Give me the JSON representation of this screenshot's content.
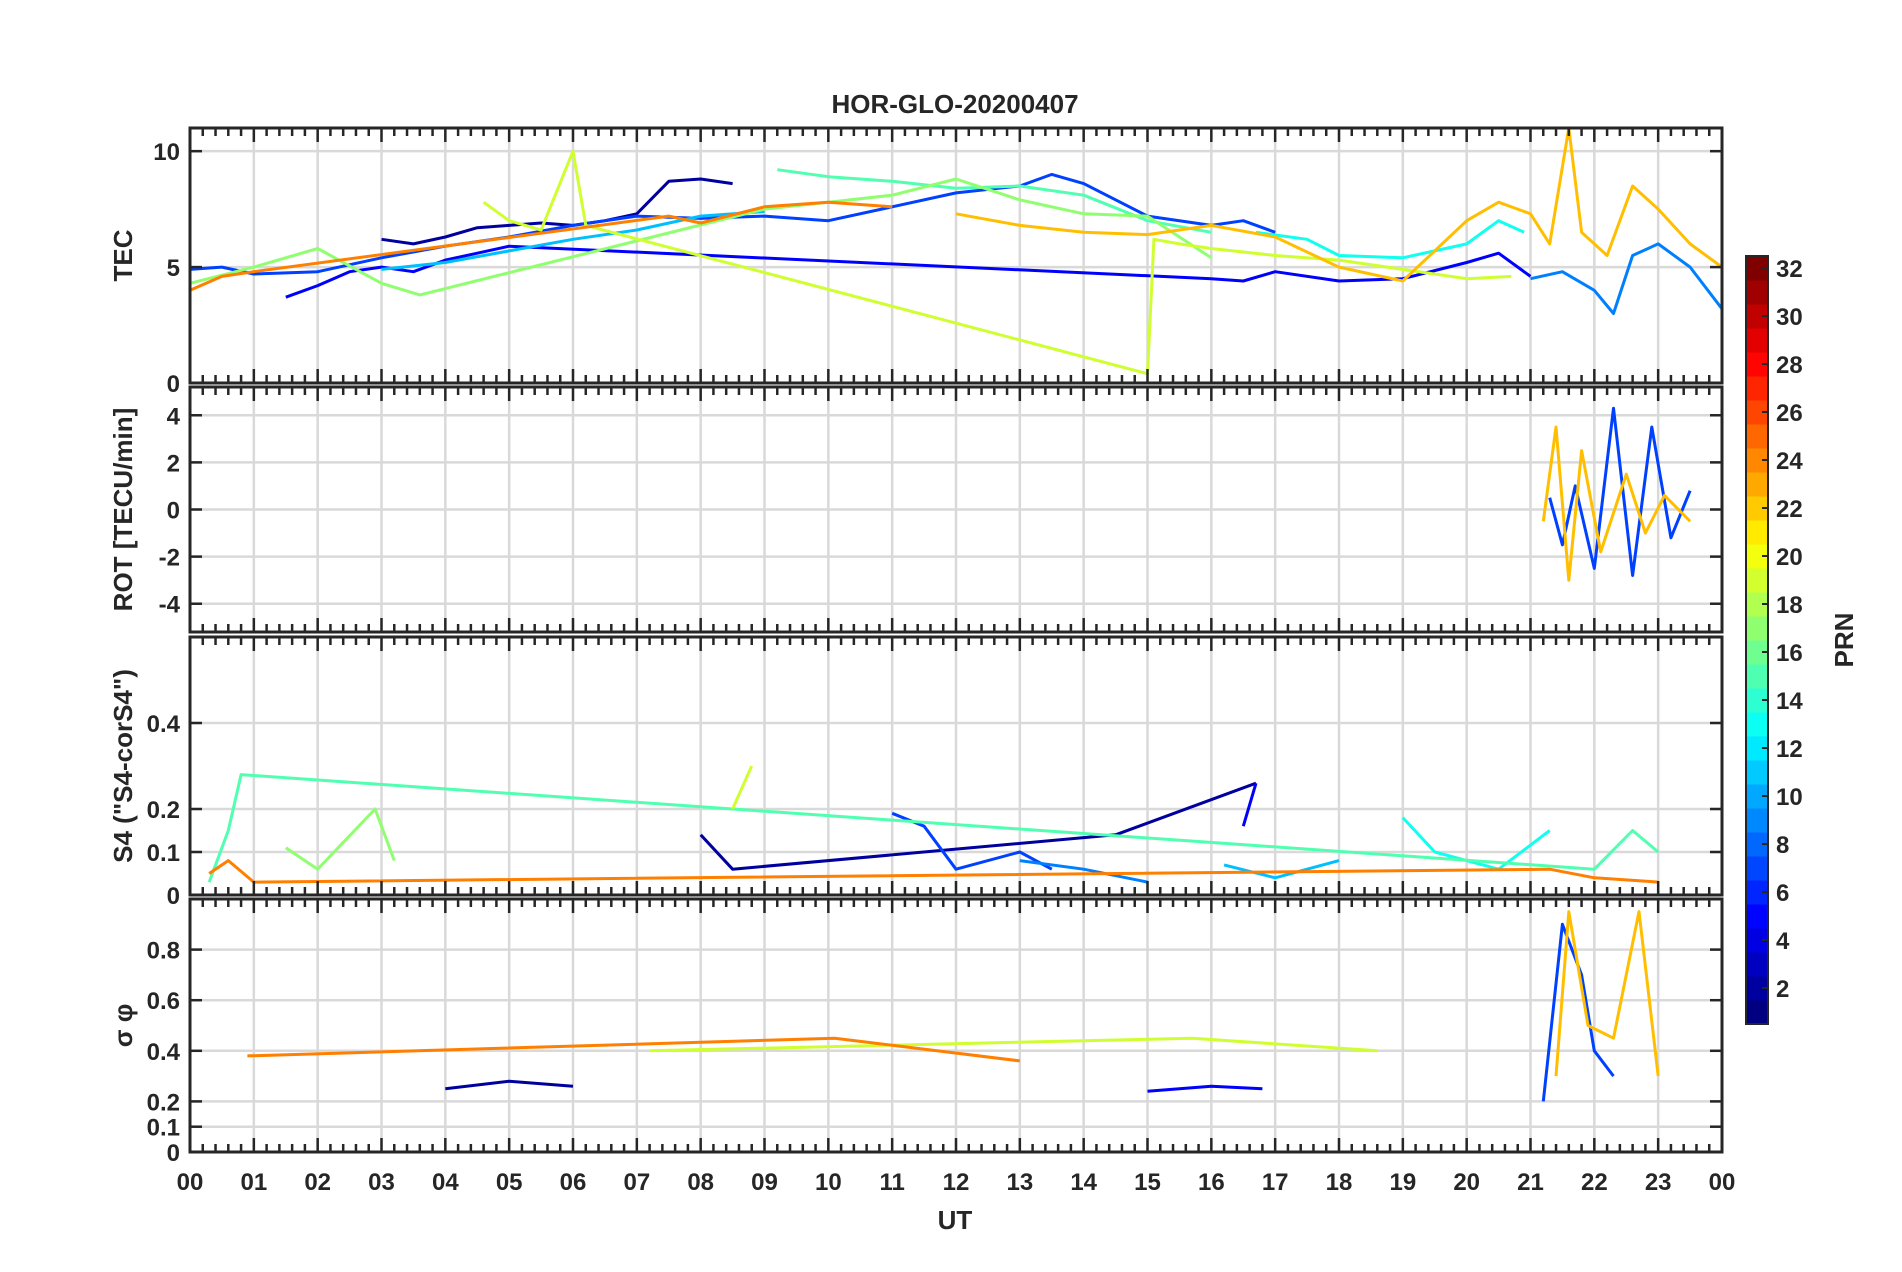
{
  "title": "HOR-GLO-20200407",
  "xlabel": "UT",
  "x_ticks": [
    "00",
    "01",
    "02",
    "03",
    "04",
    "05",
    "06",
    "07",
    "08",
    "09",
    "10",
    "11",
    "12",
    "13",
    "14",
    "15",
    "16",
    "17",
    "18",
    "19",
    "20",
    "21",
    "22",
    "23",
    "00"
  ],
  "colorbar": {
    "label": "PRN",
    "range": [
      1,
      32
    ],
    "ticks": [
      "2",
      "4",
      "6",
      "8",
      "10",
      "12",
      "14",
      "16",
      "18",
      "20",
      "22",
      "24",
      "26",
      "28",
      "30",
      "32"
    ],
    "colormap": "jet"
  },
  "panels": [
    {
      "id": "tec",
      "ylabel": "TEC",
      "ylim": [
        0,
        11
      ],
      "yticks": [
        0,
        5,
        10
      ],
      "ytick_labels": [
        "0",
        "5",
        "10"
      ]
    },
    {
      "id": "rot",
      "ylabel": "ROT [TECU/min]",
      "ylim": [
        -5.2,
        5.2
      ],
      "yticks": [
        -4,
        -2,
        0,
        2,
        4
      ],
      "ytick_labels": [
        "-4",
        "-2",
        "0",
        "2",
        "4"
      ]
    },
    {
      "id": "s4",
      "ylabel": "S4 (\"S4-corS4\")",
      "ylim": [
        0,
        0.6
      ],
      "yticks": [
        0,
        0.1,
        0.2,
        0.4
      ],
      "ytick_labels": [
        "0",
        "0.1",
        "0.2",
        "0.4"
      ]
    },
    {
      "id": "sigma",
      "ylabel": "σ φ",
      "ylim": [
        0,
        1.0
      ],
      "yticks": [
        0,
        0.1,
        0.2,
        0.4,
        0.6,
        0.8
      ],
      "ytick_labels": [
        "0",
        "0.1",
        "0.2",
        "0.4",
        "0.6",
        "0.8"
      ]
    }
  ],
  "chart_data": {
    "type": "line",
    "title": "HOR-GLO-20200407",
    "xlabel": "UT",
    "xlim": [
      0,
      24
    ],
    "series": [
      {
        "prn": 2,
        "color": "#00009f",
        "tec": [
          [
            3.0,
            6.2
          ],
          [
            3.5,
            6.0
          ],
          [
            4.0,
            6.3
          ],
          [
            4.5,
            6.7
          ],
          [
            5.0,
            6.8
          ],
          [
            5.5,
            6.9
          ],
          [
            6.0,
            6.8
          ],
          [
            6.5,
            7.0
          ],
          [
            7.0,
            7.3
          ],
          [
            7.5,
            8.7
          ],
          [
            8.0,
            8.8
          ],
          [
            8.5,
            8.6
          ]
        ],
        "sigma": [
          [
            4.0,
            0.25
          ],
          [
            5.0,
            0.28
          ],
          [
            6.0,
            0.26
          ]
        ],
        "s4": [
          [
            8.0,
            0.14
          ],
          [
            8.5,
            0.06
          ],
          [
            14.5,
            0.14
          ],
          [
            16.7,
            0.26
          ]
        ]
      },
      {
        "prn": 5,
        "color": "#0000ff",
        "tec": [
          [
            1.5,
            3.7
          ],
          [
            2.0,
            4.2
          ],
          [
            2.5,
            4.8
          ],
          [
            3.0,
            5.0
          ],
          [
            3.5,
            4.8
          ],
          [
            4.0,
            5.3
          ],
          [
            4.5,
            5.6
          ],
          [
            5.0,
            5.9
          ],
          [
            16.0,
            4.5
          ],
          [
            16.5,
            4.4
          ],
          [
            17.0,
            4.8
          ],
          [
            18.0,
            4.4
          ],
          [
            19.0,
            4.5
          ],
          [
            20.0,
            5.2
          ],
          [
            20.5,
            5.6
          ],
          [
            21.0,
            4.6
          ]
        ],
        "s4": [
          [
            16.5,
            0.16
          ],
          [
            16.7,
            0.26
          ]
        ],
        "sigma": [
          [
            15.0,
            0.24
          ],
          [
            16.0,
            0.26
          ],
          [
            16.8,
            0.25
          ]
        ]
      },
      {
        "prn": 7,
        "color": "#0040ff",
        "tec": [
          [
            0.0,
            4.9
          ],
          [
            0.5,
            5.0
          ],
          [
            1.0,
            4.7
          ],
          [
            2.0,
            4.8
          ],
          [
            3.0,
            5.4
          ],
          [
            4.0,
            5.9
          ],
          [
            5.0,
            6.3
          ],
          [
            6.0,
            6.8
          ],
          [
            7.0,
            7.2
          ],
          [
            8.0,
            7.1
          ],
          [
            9.0,
            7.2
          ],
          [
            10.0,
            7.0
          ],
          [
            11.0,
            7.6
          ],
          [
            12.0,
            8.2
          ],
          [
            13.0,
            8.5
          ],
          [
            13.5,
            9.0
          ],
          [
            14.0,
            8.6
          ],
          [
            15.0,
            7.2
          ],
          [
            16.0,
            6.8
          ],
          [
            16.5,
            7.0
          ],
          [
            17.0,
            6.5
          ]
        ],
        "rot": [
          [
            21.3,
            0.5
          ],
          [
            21.5,
            -1.5
          ],
          [
            21.7,
            1.0
          ],
          [
            22.0,
            -2.5
          ],
          [
            22.3,
            4.3
          ],
          [
            22.6,
            -2.8
          ],
          [
            22.9,
            3.5
          ],
          [
            23.2,
            -1.2
          ],
          [
            23.5,
            0.8
          ]
        ],
        "s4": [
          [
            11.0,
            0.19
          ],
          [
            11.5,
            0.16
          ],
          [
            12.0,
            0.06
          ],
          [
            13.0,
            0.1
          ],
          [
            13.5,
            0.06
          ]
        ],
        "sigma": [
          [
            21.2,
            0.2
          ],
          [
            21.5,
            0.9
          ],
          [
            21.8,
            0.7
          ],
          [
            22.0,
            0.4
          ],
          [
            22.3,
            0.3
          ]
        ]
      },
      {
        "prn": 9,
        "color": "#0080ff",
        "tec": [
          [
            21.0,
            4.5
          ],
          [
            21.5,
            4.8
          ],
          [
            22.0,
            4.0
          ],
          [
            22.3,
            3.0
          ],
          [
            22.6,
            5.5
          ],
          [
            23.0,
            6.0
          ],
          [
            23.5,
            5.0
          ],
          [
            24.0,
            3.2
          ]
        ],
        "s4": [
          [
            13.0,
            0.08
          ],
          [
            14.0,
            0.06
          ],
          [
            15.0,
            0.03
          ]
        ]
      },
      {
        "prn": 12,
        "color": "#00bfff",
        "tec": [
          [
            3.0,
            4.9
          ],
          [
            4.0,
            5.2
          ],
          [
            5.0,
            5.7
          ],
          [
            6.0,
            6.2
          ],
          [
            7.0,
            6.6
          ],
          [
            8.0,
            7.2
          ],
          [
            9.0,
            7.4
          ]
        ],
        "s4": [
          [
            16.2,
            0.07
          ],
          [
            17.0,
            0.04
          ],
          [
            18.0,
            0.08
          ]
        ]
      },
      {
        "prn": 14,
        "color": "#10ffef",
        "tec": [
          [
            16.7,
            6.5
          ],
          [
            17.5,
            6.2
          ],
          [
            18.0,
            5.5
          ],
          [
            19.0,
            5.4
          ],
          [
            20.0,
            6.0
          ],
          [
            20.5,
            7.0
          ],
          [
            20.9,
            6.5
          ]
        ],
        "s4": [
          [
            19.0,
            0.18
          ],
          [
            19.5,
            0.1
          ],
          [
            20.5,
            0.06
          ],
          [
            21.3,
            0.15
          ]
        ]
      },
      {
        "prn": 16,
        "color": "#50ffaf",
        "tec": [
          [
            9.2,
            9.2
          ],
          [
            10.0,
            8.9
          ],
          [
            11.0,
            8.7
          ],
          [
            12.0,
            8.4
          ],
          [
            13.0,
            8.5
          ],
          [
            14.0,
            8.1
          ],
          [
            15.0,
            7.0
          ],
          [
            16.0,
            6.5
          ]
        ],
        "s4": [
          [
            0.3,
            0.03
          ],
          [
            0.6,
            0.15
          ],
          [
            0.8,
            0.28
          ],
          [
            22.0,
            0.06
          ],
          [
            22.6,
            0.15
          ],
          [
            23.0,
            0.1
          ]
        ]
      },
      {
        "prn": 18,
        "color": "#90ff6f",
        "tec": [
          [
            0.0,
            4.3
          ],
          [
            1.0,
            5.0
          ],
          [
            2.0,
            5.8
          ],
          [
            3.0,
            4.3
          ],
          [
            3.6,
            3.8
          ],
          [
            9.0,
            7.5
          ],
          [
            10.0,
            7.8
          ],
          [
            11.0,
            8.1
          ],
          [
            12.0,
            8.8
          ],
          [
            13.0,
            7.9
          ],
          [
            14.0,
            7.3
          ],
          [
            15.0,
            7.2
          ],
          [
            16.0,
            5.4
          ]
        ],
        "s4": [
          [
            1.5,
            0.11
          ],
          [
            2.0,
            0.06
          ],
          [
            2.9,
            0.2
          ],
          [
            3.2,
            0.08
          ]
        ]
      },
      {
        "prn": 20,
        "color": "#cfff30",
        "tec": [
          [
            4.6,
            7.8
          ],
          [
            5.0,
            7.0
          ],
          [
            5.5,
            6.6
          ],
          [
            6.0,
            10.0
          ],
          [
            6.2,
            6.8
          ],
          [
            15.0,
            0.4
          ],
          [
            15.1,
            6.2
          ],
          [
            15.5,
            6.0
          ],
          [
            16.0,
            5.8
          ],
          [
            17.0,
            5.5
          ],
          [
            18.0,
            5.3
          ],
          [
            19.0,
            4.9
          ],
          [
            20.0,
            4.5
          ],
          [
            20.7,
            4.6
          ]
        ],
        "s4": [
          [
            8.5,
            0.2
          ],
          [
            8.8,
            0.3
          ]
        ],
        "sigma": [
          [
            7.2,
            0.4
          ],
          [
            15.7,
            0.45
          ],
          [
            18.6,
            0.4
          ]
        ]
      },
      {
        "prn": 22,
        "color": "#ffbf00",
        "tec": [
          [
            12.0,
            7.3
          ],
          [
            13.0,
            6.8
          ],
          [
            14.0,
            6.5
          ],
          [
            15.0,
            6.4
          ],
          [
            16.0,
            6.8
          ],
          [
            17.0,
            6.3
          ],
          [
            18.0,
            5.0
          ],
          [
            19.0,
            4.4
          ],
          [
            20.0,
            7.0
          ],
          [
            20.5,
            7.8
          ],
          [
            21.0,
            7.3
          ],
          [
            21.3,
            6.0
          ],
          [
            21.6,
            11.0
          ],
          [
            21.8,
            6.5
          ],
          [
            22.2,
            5.5
          ],
          [
            22.6,
            8.5
          ],
          [
            23.0,
            7.5
          ],
          [
            23.5,
            6.0
          ],
          [
            24.0,
            5.0
          ]
        ],
        "rot": [
          [
            21.2,
            -0.5
          ],
          [
            21.4,
            3.5
          ],
          [
            21.6,
            -3.0
          ],
          [
            21.8,
            2.5
          ],
          [
            22.1,
            -1.8
          ],
          [
            22.5,
            1.5
          ],
          [
            22.8,
            -1.0
          ],
          [
            23.1,
            0.6
          ],
          [
            23.5,
            -0.5
          ]
        ],
        "sigma": [
          [
            21.4,
            0.3
          ],
          [
            21.6,
            0.95
          ],
          [
            21.9,
            0.5
          ],
          [
            22.3,
            0.45
          ],
          [
            22.7,
            0.95
          ],
          [
            23.0,
            0.3
          ]
        ]
      },
      {
        "prn": 24,
        "color": "#ff7f00",
        "tec": [
          [
            0.0,
            4.0
          ],
          [
            0.5,
            4.6
          ],
          [
            1.0,
            4.8
          ],
          [
            7.5,
            7.2
          ],
          [
            8.0,
            6.9
          ],
          [
            9.0,
            7.6
          ],
          [
            10.0,
            7.8
          ],
          [
            11.0,
            7.6
          ]
        ],
        "s4": [
          [
            0.3,
            0.05
          ],
          [
            0.6,
            0.08
          ],
          [
            1.0,
            0.03
          ],
          [
            21.3,
            0.06
          ],
          [
            22.0,
            0.04
          ],
          [
            23.0,
            0.03
          ]
        ],
        "sigma": [
          [
            0.9,
            0.38
          ],
          [
            10.1,
            0.45
          ],
          [
            13.0,
            0.36
          ]
        ]
      }
    ]
  }
}
